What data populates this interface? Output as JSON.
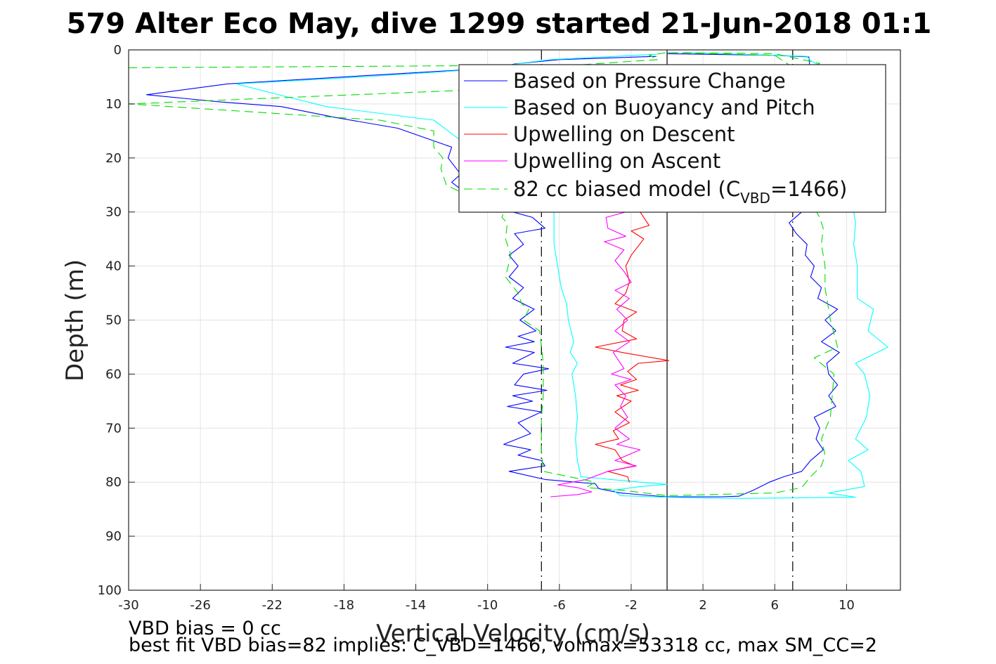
{
  "chart_data": {
    "type": "line",
    "title": "579 Alter Eco May, dive 1299 started 21-Jun-2018 01:1",
    "xlabel": "Vertical Velocity (cm/s)",
    "ylabel": "Depth (m)",
    "xlim": [
      -30,
      13
    ],
    "ylim": [
      0,
      100
    ],
    "y_reversed": true,
    "grid": true,
    "xticks": [
      -30,
      -26,
      -22,
      -18,
      -14,
      -10,
      -6,
      -2,
      2,
      6,
      10
    ],
    "yticks": [
      0,
      10,
      20,
      30,
      40,
      50,
      60,
      70,
      80,
      90,
      100
    ],
    "legend_position": "top-right",
    "reference_lines": [
      {
        "x": 0,
        "style": "solid",
        "color": "#000000"
      },
      {
        "x": -7,
        "style": "dash-dot",
        "color": "#000000"
      },
      {
        "x": 7,
        "style": "dash-dot",
        "color": "#000000"
      }
    ],
    "series": [
      {
        "name": "Based on Pressure Change",
        "color": "#0000ff",
        "dash": "solid",
        "points": [
          [
            -0.6,
            1.2
          ],
          [
            -6,
            1.8
          ],
          [
            -8.5,
            2.6
          ],
          [
            -9.3,
            3.3
          ],
          [
            -16,
            4.6
          ],
          [
            -24.5,
            6.3
          ],
          [
            -29,
            8.3
          ],
          [
            -25,
            9.6
          ],
          [
            -21.5,
            10.5
          ],
          [
            -18.5,
            12.5
          ],
          [
            -15,
            14.5
          ],
          [
            -12,
            18
          ],
          [
            -12.2,
            20
          ],
          [
            -11.5,
            23
          ],
          [
            -12,
            24.5
          ],
          [
            -11,
            27
          ],
          [
            -9,
            28
          ],
          [
            -8.6,
            30
          ],
          [
            -7.5,
            31
          ],
          [
            -6.8,
            33
          ],
          [
            -8.5,
            34
          ],
          [
            -8,
            36
          ],
          [
            -8.8,
            38
          ],
          [
            -8.3,
            40
          ],
          [
            -8.8,
            42
          ],
          [
            -8,
            44
          ],
          [
            -8.6,
            46
          ],
          [
            -7.4,
            48
          ],
          [
            -8.2,
            50
          ],
          [
            -7.3,
            52
          ],
          [
            -8.3,
            53
          ],
          [
            -7.4,
            54
          ],
          [
            -9,
            55
          ],
          [
            -7.4,
            56
          ],
          [
            -8.6,
            58
          ],
          [
            -6.6,
            59
          ],
          [
            -8,
            60
          ],
          [
            -8.5,
            62
          ],
          [
            -6.7,
            63
          ],
          [
            -8.6,
            64
          ],
          [
            -7.5,
            65
          ],
          [
            -8.9,
            66
          ],
          [
            -7,
            67
          ],
          [
            -8.3,
            69
          ],
          [
            -7.6,
            71
          ],
          [
            -9.1,
            73
          ],
          [
            -7.6,
            74
          ],
          [
            -8.3,
            75
          ],
          [
            -7,
            76
          ],
          [
            -6.8,
            77
          ],
          [
            -8.8,
            78
          ],
          [
            -6.8,
            79.5
          ],
          [
            -4,
            80.3
          ],
          [
            -3.8,
            81.2
          ],
          [
            -2.6,
            82
          ],
          [
            -0.1,
            82.7
          ],
          [
            3,
            82.7
          ],
          [
            4,
            82.6
          ],
          [
            4.8,
            81.5
          ],
          [
            5.7,
            80
          ],
          [
            6.5,
            79
          ],
          [
            7.5,
            78
          ],
          [
            8,
            76
          ],
          [
            8.7,
            74
          ],
          [
            8.3,
            72
          ],
          [
            8.5,
            70
          ],
          [
            8.2,
            68
          ],
          [
            9.4,
            66
          ],
          [
            9,
            64
          ],
          [
            9.5,
            62
          ],
          [
            9,
            60
          ],
          [
            8.9,
            58
          ],
          [
            9.6,
            56
          ],
          [
            8.6,
            54
          ],
          [
            9.4,
            52
          ],
          [
            8.8,
            50
          ],
          [
            9.5,
            48
          ],
          [
            8.4,
            46
          ],
          [
            8.6,
            44
          ],
          [
            8,
            42
          ],
          [
            8.2,
            40
          ],
          [
            7.7,
            38
          ],
          [
            7.8,
            36
          ],
          [
            7.2,
            34
          ],
          [
            6.8,
            32
          ],
          [
            7.5,
            30
          ],
          [
            8,
            28
          ],
          [
            9,
            25
          ],
          [
            8.8,
            20
          ],
          [
            9,
            15
          ],
          [
            8.2,
            10
          ],
          [
            8,
            5
          ],
          [
            7.9,
            1.3
          ],
          [
            6,
            1
          ],
          [
            0,
            0.7
          ]
        ]
      },
      {
        "name": "Based on Buoyancy and Pitch",
        "color": "#00ffff",
        "dash": "solid",
        "points": [
          [
            -0.6,
            0.8
          ],
          [
            -6.5,
            1.8
          ],
          [
            -8,
            2.4
          ],
          [
            -10,
            3.5
          ],
          [
            -17,
            5
          ],
          [
            -24,
            6.3
          ],
          [
            -22,
            8
          ],
          [
            -19,
            10.5
          ],
          [
            -13,
            13
          ],
          [
            -11,
            18
          ],
          [
            -8.6,
            23
          ],
          [
            -7,
            26
          ],
          [
            -6.3,
            28
          ],
          [
            -6.3,
            32
          ],
          [
            -6.3,
            36
          ],
          [
            -6.1,
            40
          ],
          [
            -5.9,
            44
          ],
          [
            -5.6,
            47
          ],
          [
            -5.5,
            50
          ],
          [
            -5.2,
            54
          ],
          [
            -5.4,
            56
          ],
          [
            -5,
            58
          ],
          [
            -5.3,
            60
          ],
          [
            -5.1,
            64
          ],
          [
            -5,
            68
          ],
          [
            -5.1,
            72
          ],
          [
            -5,
            76
          ],
          [
            -4.8,
            79
          ],
          [
            -1.5,
            80
          ],
          [
            0,
            80.4
          ],
          [
            -1.5,
            80.8
          ],
          [
            -3,
            81.5
          ],
          [
            -2.6,
            82.5
          ],
          [
            0,
            82.8
          ],
          [
            4,
            83
          ],
          [
            10.5,
            82.8
          ],
          [
            9,
            82
          ],
          [
            11,
            80.8
          ],
          [
            10.8,
            78
          ],
          [
            10.1,
            76
          ],
          [
            11.2,
            74
          ],
          [
            10.5,
            72
          ],
          [
            11.1,
            68
          ],
          [
            11.3,
            64
          ],
          [
            11,
            60
          ],
          [
            10.5,
            58
          ],
          [
            12.3,
            55
          ],
          [
            11.2,
            52
          ],
          [
            11.5,
            48
          ],
          [
            10.6,
            46
          ],
          [
            10.6,
            40
          ],
          [
            10.4,
            36
          ],
          [
            10.5,
            32
          ],
          [
            10.3,
            28
          ],
          [
            10.5,
            20
          ],
          [
            10,
            10
          ],
          [
            9.7,
            5
          ],
          [
            8,
            2
          ],
          [
            7.8,
            1.2
          ],
          [
            1,
            0.5
          ]
        ]
      },
      {
        "name": "Upwelling on Descent",
        "color": "#ff0000",
        "dash": "solid",
        "points": [
          [
            -1.5,
            30
          ],
          [
            -1,
            32.5
          ],
          [
            -2,
            33.5
          ],
          [
            -1.3,
            35
          ],
          [
            -2,
            38
          ],
          [
            -2.3,
            40
          ],
          [
            -2.1,
            43
          ],
          [
            -2.3,
            45
          ],
          [
            -2.9,
            47
          ],
          [
            -1.7,
            48.5
          ],
          [
            -2.4,
            50
          ],
          [
            -2.5,
            52
          ],
          [
            -1.7,
            53.5
          ],
          [
            -4,
            55
          ],
          [
            -2.5,
            56
          ],
          [
            0.1,
            57.5
          ],
          [
            -1.6,
            58
          ],
          [
            -2.2,
            59.5
          ],
          [
            -1.7,
            61
          ],
          [
            -2.6,
            62
          ],
          [
            -1.6,
            63
          ],
          [
            -2.8,
            64
          ],
          [
            -2,
            65
          ],
          [
            -2.9,
            67
          ],
          [
            -2.1,
            69
          ],
          [
            -3,
            70.5
          ],
          [
            -2.7,
            72
          ],
          [
            -4,
            73
          ],
          [
            -2.9,
            74
          ],
          [
            -2.5,
            76
          ],
          [
            -1.8,
            77
          ],
          [
            -3.3,
            78
          ],
          [
            -2.2,
            79
          ],
          [
            -2.1,
            80
          ]
        ]
      },
      {
        "name": "Upwelling on Ascent",
        "color": "#ff00ff",
        "dash": "solid",
        "points": [
          [
            -6.5,
            82.7
          ],
          [
            -5,
            82.3
          ],
          [
            -4.2,
            81.8
          ],
          [
            -5,
            81
          ],
          [
            -6.1,
            80.5
          ],
          [
            -4.5,
            79.5
          ],
          [
            -3.3,
            78
          ],
          [
            -1.7,
            77
          ],
          [
            -2.9,
            76
          ],
          [
            -1.5,
            74
          ],
          [
            -2.8,
            73
          ],
          [
            -2.1,
            72
          ],
          [
            -2.9,
            70
          ],
          [
            -2.2,
            68
          ],
          [
            -2.6,
            66
          ],
          [
            -2.3,
            64
          ],
          [
            -2.9,
            62
          ],
          [
            -2,
            61
          ],
          [
            -3.1,
            60
          ],
          [
            -2.4,
            59
          ],
          [
            -3,
            56
          ],
          [
            -2.1,
            54
          ],
          [
            -2.9,
            52
          ],
          [
            -2.2,
            50
          ],
          [
            -2.8,
            48
          ],
          [
            -2.1,
            46
          ],
          [
            -2.9,
            44.5
          ],
          [
            -2,
            43
          ],
          [
            -2.4,
            41
          ],
          [
            -2.9,
            39
          ],
          [
            -2.4,
            37
          ],
          [
            -3.5,
            35.5
          ],
          [
            -2.3,
            34.5
          ],
          [
            -3.3,
            33
          ],
          [
            -3.4,
            31
          ],
          [
            -2.3,
            30
          ]
        ]
      },
      {
        "name": "82 cc biased model (C_VBD=1466)",
        "color": "#00dd00",
        "dash": "dashed",
        "points": [
          [
            -30,
            3.3
          ],
          [
            -15,
            3.0
          ],
          [
            -5,
            2.8
          ],
          [
            -0.5,
            1.8
          ],
          [
            -1,
            1
          ],
          [
            0,
            0.5
          ],
          [
            6,
            0.7
          ],
          [
            8.5,
            2.5
          ],
          [
            7,
            5
          ],
          [
            -30,
            10
          ],
          [
            -16,
            13
          ],
          [
            -13,
            15
          ],
          [
            -13,
            18
          ],
          [
            -12.5,
            20
          ],
          [
            -12.6,
            22
          ],
          [
            -12.3,
            25
          ],
          [
            -10.5,
            28
          ],
          [
            -9,
            29
          ],
          [
            -9.2,
            31
          ],
          [
            -8.9,
            32
          ],
          [
            -9,
            35
          ],
          [
            -8.7,
            38
          ],
          [
            -9,
            42
          ],
          [
            -8.3,
            45
          ],
          [
            -8.1,
            47
          ],
          [
            -7.7,
            48
          ],
          [
            -8,
            50
          ],
          [
            -7.1,
            52
          ],
          [
            -6.9,
            58
          ],
          [
            -6.9,
            64
          ],
          [
            -7,
            68
          ],
          [
            -7,
            74
          ],
          [
            -6.9,
            78
          ],
          [
            -4,
            80
          ],
          [
            -4.5,
            81
          ],
          [
            -2.5,
            81.5
          ],
          [
            0,
            82.5
          ],
          [
            6,
            82
          ],
          [
            7.5,
            81
          ],
          [
            8,
            79
          ],
          [
            8.6,
            77
          ],
          [
            8.8,
            75
          ],
          [
            8.6,
            72
          ],
          [
            9.1,
            68
          ],
          [
            9.2,
            64
          ],
          [
            9.3,
            60
          ],
          [
            8.2,
            57
          ],
          [
            9.5,
            55
          ],
          [
            9.1,
            50
          ],
          [
            8.9,
            46
          ],
          [
            8.8,
            44
          ],
          [
            8.8,
            40
          ],
          [
            8.6,
            36
          ],
          [
            8.7,
            33
          ],
          [
            8.5,
            31
          ],
          [
            8,
            28
          ],
          [
            8.3,
            20
          ],
          [
            8.2,
            10
          ],
          [
            7.8,
            5
          ],
          [
            6,
            1
          ],
          [
            0,
            0.5
          ]
        ]
      }
    ]
  },
  "legend": {
    "items": [
      {
        "label": "Based on Pressure Change",
        "color": "#0000ff",
        "dash": "solid"
      },
      {
        "label": "Based on Buoyancy and Pitch",
        "color": "#00ffff",
        "dash": "solid"
      },
      {
        "label": "Upwelling on Descent",
        "color": "#ff0000",
        "dash": "solid"
      },
      {
        "label": "Upwelling on Ascent",
        "color": "#ff00ff",
        "dash": "solid"
      },
      {
        "label": "82 cc biased model (C",
        "sub": "VBD",
        "suffix": "=1466)",
        "color": "#00dd00",
        "dash": "dashed"
      }
    ]
  },
  "footnotes": {
    "line1": "VBD bias = 0 cc",
    "line2": "best fit VBD bias=82 implies: C_VBD=1466, volmax=53318 cc, max SM_CC=2"
  }
}
